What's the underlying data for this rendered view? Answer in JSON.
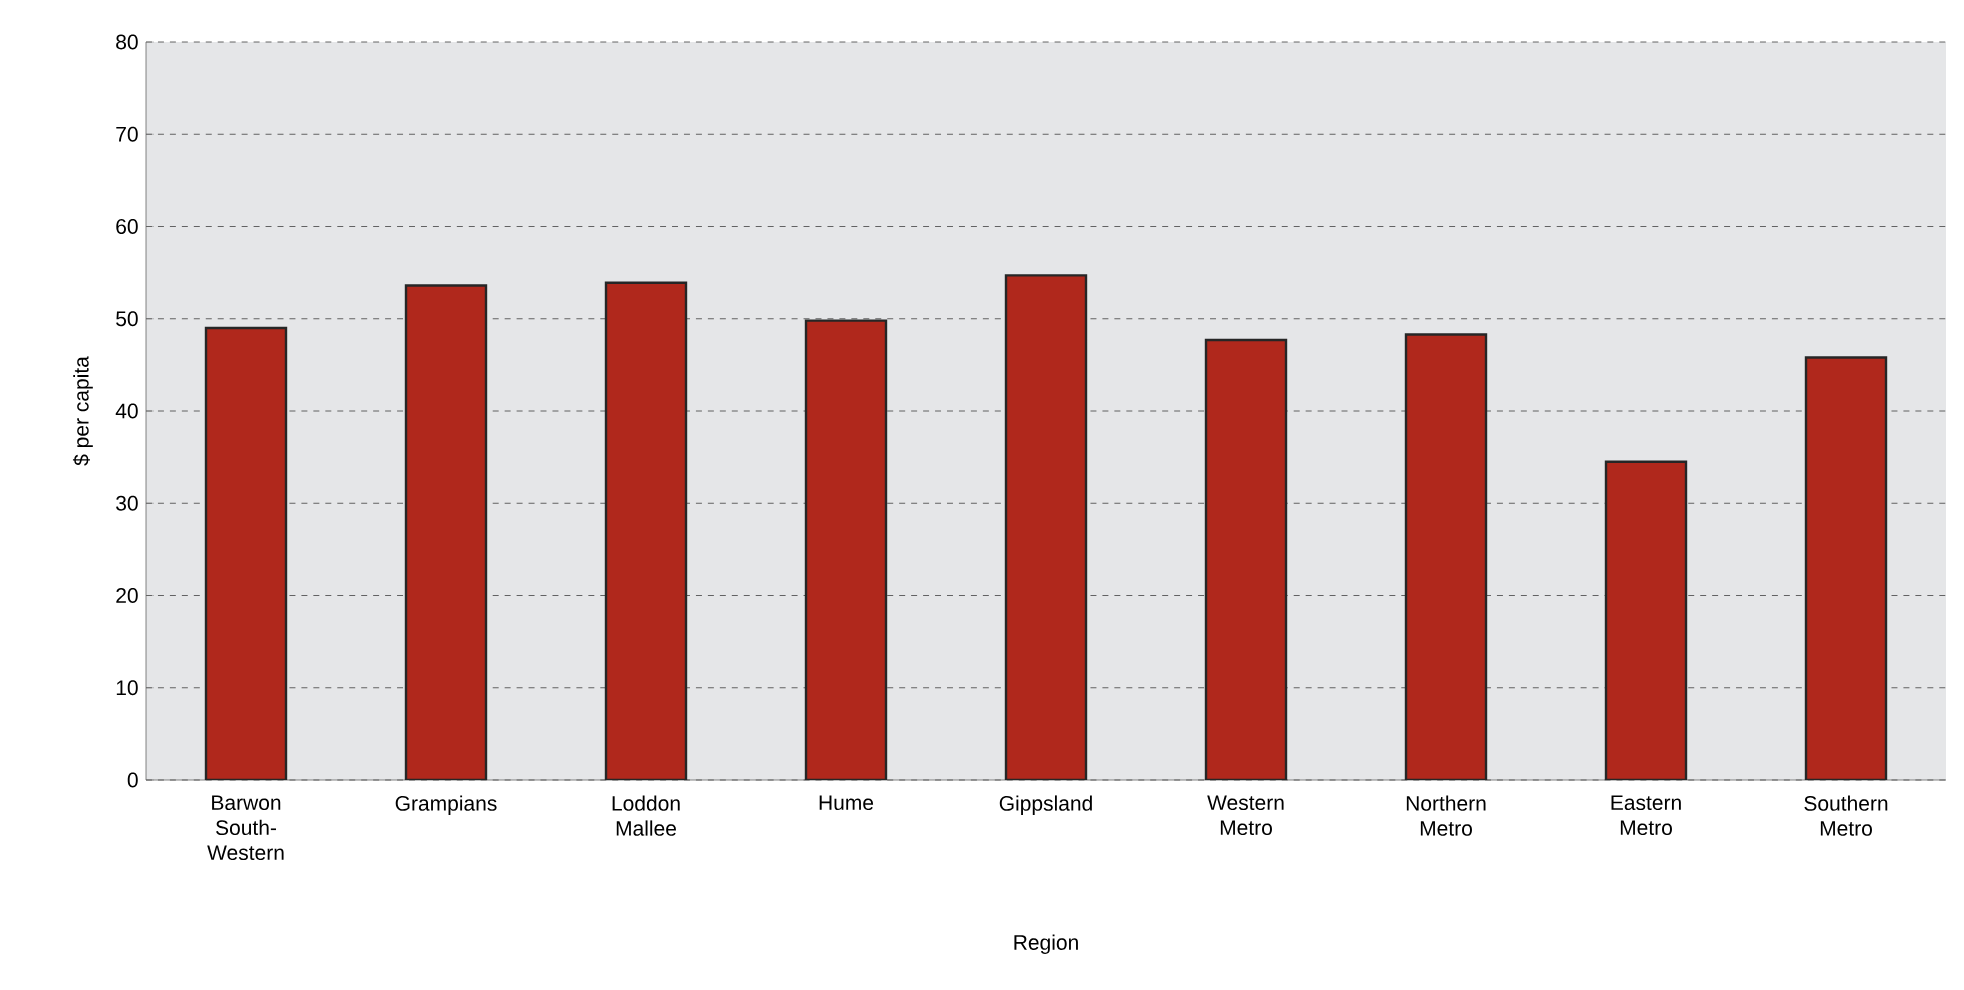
{
  "chart_data": {
    "type": "bar",
    "xlabel": "Region",
    "ylabel": "$ per capita",
    "categories": [
      "Barwon South-Western",
      "Grampians",
      "Loddon Mallee",
      "Hume",
      "Gippsland",
      "Western Metro",
      "Northern Metro",
      "Eastern Metro",
      "Southern Metro"
    ],
    "values": [
      49.0,
      53.6,
      53.9,
      49.8,
      54.7,
      47.7,
      48.3,
      34.5,
      45.8
    ],
    "color": "#b0281c",
    "ylim": [
      0,
      80
    ],
    "yticks": [
      0,
      10,
      20,
      30,
      40,
      50,
      60,
      70,
      80
    ],
    "grid": "y"
  }
}
